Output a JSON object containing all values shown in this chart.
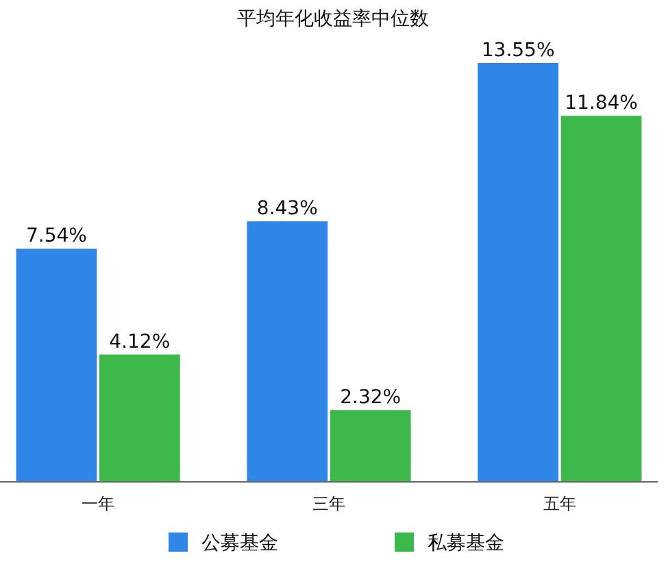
{
  "chart_data": {
    "type": "bar",
    "title": "平均年化收益率中位数",
    "categories": [
      "一年",
      "三年",
      "五年"
    ],
    "series": [
      {
        "name": "公募基金",
        "color": "#2f86e6",
        "values": [
          7.54,
          8.43,
          13.55
        ],
        "value_labels": [
          "7.54%",
          "8.43%",
          "13.55%"
        ]
      },
      {
        "name": "私募基金",
        "color": "#3cb94a",
        "values": [
          4.12,
          2.32,
          11.84
        ],
        "value_labels": [
          "4.12%",
          "2.32%",
          "11.84%"
        ]
      }
    ],
    "legend": "bottom"
  }
}
